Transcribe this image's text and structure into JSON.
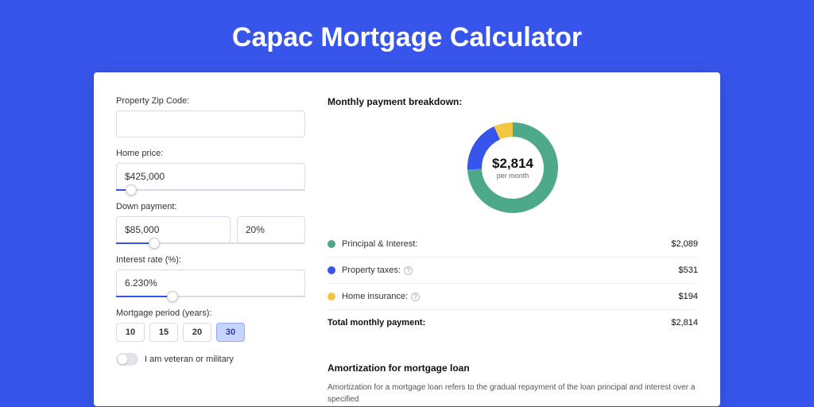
{
  "title": "Capac Mortgage Calculator",
  "form": {
    "zip_label": "Property Zip Code:",
    "zip_value": "",
    "home_label": "Home price:",
    "home_value": "$425,000",
    "home_slider_pct": 8,
    "down_label": "Down payment:",
    "down_value": "$85,000",
    "down_pct_value": "20%",
    "down_slider_pct": 20,
    "rate_label": "Interest rate (%):",
    "rate_value": "6.230%",
    "rate_slider_pct": 30,
    "period_label": "Mortgage period (years):",
    "periods": [
      "10",
      "15",
      "20",
      "30"
    ],
    "period_active": 3,
    "veteran_label": "I am veteran or military"
  },
  "breakdown": {
    "title": "Monthly payment breakdown:",
    "center_value": "$2,814",
    "center_sub": "per month",
    "donut": {
      "type": "donut",
      "size": 120,
      "stroke": 18,
      "background_color": "#ffffff",
      "circumference": 301.6,
      "segments": [
        {
          "label": "Principal & Interest:",
          "value": "$2,089",
          "pct": 74.2,
          "color": "#4ea98b",
          "has_info": false
        },
        {
          "label": "Property taxes:",
          "value": "$531",
          "pct": 18.9,
          "color": "#3755ea",
          "has_info": true
        },
        {
          "label": "Home insurance:",
          "value": "$194",
          "pct": 6.9,
          "color": "#f2c744",
          "has_info": true
        }
      ]
    },
    "total_label": "Total monthly payment:",
    "total_value": "$2,814"
  },
  "amort": {
    "title": "Amortization for mortgage loan",
    "text": "Amortization for a mortgage loan refers to the gradual repayment of the loan principal and interest over a specified"
  }
}
